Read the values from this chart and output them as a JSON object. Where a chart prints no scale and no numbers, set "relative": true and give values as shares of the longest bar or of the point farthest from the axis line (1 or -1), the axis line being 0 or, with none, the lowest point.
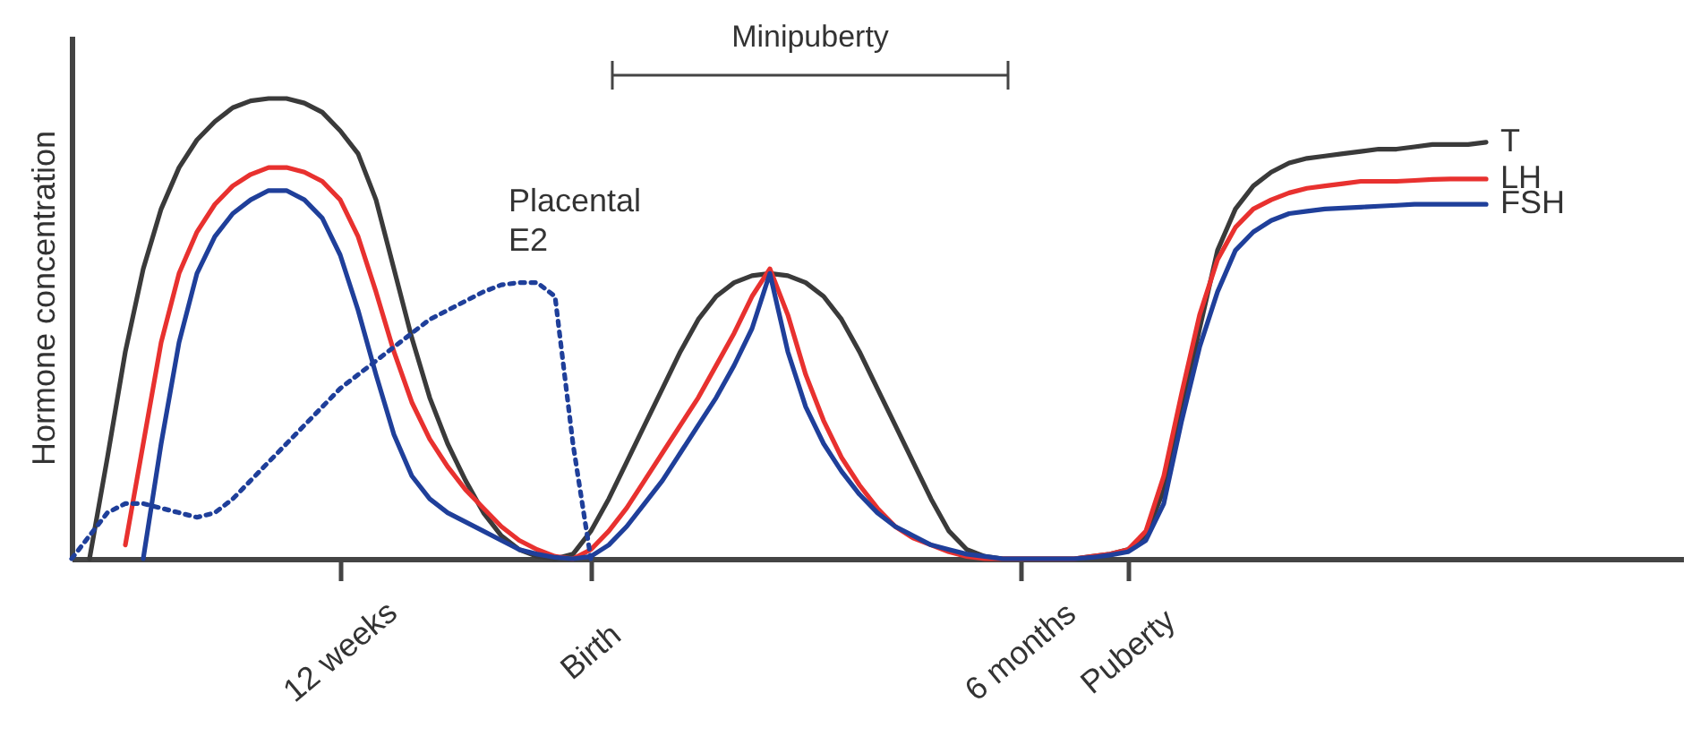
{
  "chart_data": {
    "type": "line",
    "relative": true,
    "ylabel": "Hormone concentration",
    "marker": "none",
    "categories": [
      null,
      null,
      null,
      null,
      null,
      null,
      null,
      null,
      null,
      null,
      null,
      null,
      null,
      null,
      null,
      "12 weeks",
      null,
      null,
      null,
      null,
      null,
      null,
      null,
      null,
      null,
      null,
      null,
      null,
      null,
      "Birth",
      null,
      null,
      null,
      null,
      null,
      null,
      null,
      null,
      null,
      null,
      null,
      null,
      null,
      null,
      null,
      null,
      null,
      null,
      null,
      null,
      null,
      null,
      null,
      "6 months",
      null,
      null,
      null,
      null,
      null,
      "Puberty",
      null,
      null,
      null,
      null,
      null,
      null,
      null,
      null,
      null,
      null,
      null,
      null,
      null,
      null,
      null,
      null,
      null,
      null,
      null,
      null,
      null,
      null,
      null,
      null,
      null,
      null,
      null,
      null,
      null,
      null,
      null
    ],
    "annotations": [
      "Minipuberty"
    ],
    "series": [
      {
        "name": "T",
        "color": "#3a3a3a",
        "line_style": "solid",
        "values": [
          null,
          0,
          0.22,
          0.45,
          0.63,
          0.76,
          0.85,
          0.91,
          0.95,
          0.98,
          0.995,
          1.0,
          1.0,
          0.99,
          0.97,
          0.93,
          0.88,
          0.78,
          0.63,
          0.48,
          0.35,
          0.25,
          0.17,
          0.1,
          0.05,
          0.02,
          0.005,
          0,
          0.01,
          0.06,
          0.13,
          0.21,
          0.29,
          0.37,
          0.45,
          0.52,
          0.57,
          0.6,
          0.615,
          0.62,
          0.615,
          0.6,
          0.57,
          0.52,
          0.45,
          0.37,
          0.29,
          0.21,
          0.13,
          0.06,
          0.02,
          0.005,
          0,
          0,
          0,
          0,
          0,
          0.005,
          0.01,
          0.02,
          0.05,
          0.15,
          0.32,
          0.5,
          0.67,
          0.76,
          0.81,
          0.84,
          0.86,
          0.87,
          0.875,
          0.88,
          0.885,
          0.89,
          0.89,
          0.895,
          0.9,
          0.9,
          0.9,
          0.905,
          null,
          null,
          null,
          null,
          null,
          null,
          null,
          null,
          null,
          null,
          null
        ]
      },
      {
        "name": "LH",
        "color": "#e8312f",
        "line_style": "solid",
        "values": [
          null,
          null,
          null,
          0.03,
          0.25,
          0.47,
          0.62,
          0.71,
          0.77,
          0.81,
          0.835,
          0.85,
          0.85,
          0.84,
          0.82,
          0.78,
          0.7,
          0.58,
          0.45,
          0.34,
          0.26,
          0.2,
          0.15,
          0.11,
          0.07,
          0.04,
          0.02,
          0.005,
          0,
          0.02,
          0.06,
          0.11,
          0.17,
          0.23,
          0.29,
          0.35,
          0.42,
          0.49,
          0.57,
          0.63,
          0.53,
          0.4,
          0.3,
          0.22,
          0.16,
          0.11,
          0.07,
          0.045,
          0.03,
          0.015,
          0.005,
          0,
          0,
          0,
          0,
          0,
          0,
          0.005,
          0.01,
          0.02,
          0.06,
          0.18,
          0.36,
          0.53,
          0.65,
          0.72,
          0.76,
          0.78,
          0.795,
          0.805,
          0.81,
          0.815,
          0.82,
          0.82,
          0.82,
          0.822,
          0.824,
          0.825,
          0.825,
          0.825,
          null,
          null,
          null,
          null,
          null,
          null,
          null,
          null,
          null,
          null,
          null
        ]
      },
      {
        "name": "FSH",
        "color": "#1f3f9a",
        "line_style": "solid",
        "values": [
          null,
          null,
          null,
          null,
          0,
          0.25,
          0.47,
          0.62,
          0.7,
          0.75,
          0.78,
          0.8,
          0.8,
          0.78,
          0.74,
          0.66,
          0.54,
          0.4,
          0.27,
          0.18,
          0.13,
          0.1,
          0.08,
          0.06,
          0.04,
          0.02,
          0.01,
          0.003,
          0,
          0.005,
          0.03,
          0.07,
          0.12,
          0.17,
          0.23,
          0.29,
          0.35,
          0.42,
          0.5,
          0.62,
          0.45,
          0.33,
          0.25,
          0.19,
          0.14,
          0.1,
          0.07,
          0.05,
          0.03,
          0.02,
          0.01,
          0.005,
          0,
          0,
          0,
          0,
          0,
          0.003,
          0.008,
          0.015,
          0.04,
          0.12,
          0.3,
          0.46,
          0.58,
          0.67,
          0.71,
          0.735,
          0.75,
          0.755,
          0.76,
          0.762,
          0.764,
          0.766,
          0.768,
          0.77,
          0.77,
          0.77,
          0.77,
          0.77,
          null,
          null,
          null,
          null,
          null,
          null,
          null,
          null,
          null,
          null,
          null
        ]
      },
      {
        "name": "Placental E2",
        "color": "#1f3f9a",
        "line_style": "dotted",
        "values": [
          0,
          0.05,
          0.1,
          0.12,
          0.12,
          0.11,
          0.1,
          0.09,
          0.1,
          0.13,
          0.17,
          0.21,
          0.25,
          0.29,
          0.33,
          0.37,
          0.4,
          0.43,
          0.46,
          0.49,
          0.52,
          0.54,
          0.56,
          0.58,
          0.595,
          0.6,
          0.6,
          0.57,
          0.25,
          0,
          null,
          null,
          null,
          null,
          null,
          null,
          null,
          null,
          null,
          null,
          null,
          null,
          null,
          null,
          null,
          null,
          null,
          null,
          null,
          null,
          null,
          null,
          null,
          null,
          null,
          null,
          null,
          null,
          null,
          null,
          null,
          null,
          null,
          null,
          null,
          null,
          null,
          null,
          null,
          null,
          null,
          null,
          null,
          null,
          null,
          null,
          null,
          null,
          null,
          null,
          null,
          null,
          null,
          null,
          null,
          null,
          null,
          null,
          null,
          null,
          null
        ]
      }
    ]
  }
}
